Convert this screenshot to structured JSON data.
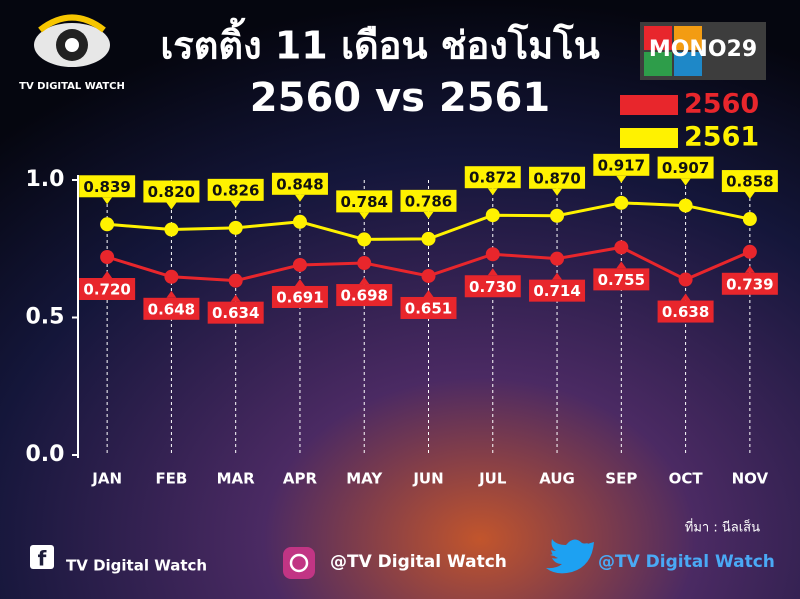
{
  "logo_left": "TV DIGITAL WATCH",
  "logo_right": "MONO29",
  "source": "ที่มา : นีลเส็น",
  "footer": {
    "facebook": "TV Digital  Watch",
    "instagram": "@TV Digital Watch",
    "twitter": "@TV Digital Watch"
  },
  "chart_data": {
    "type": "line",
    "title": "เรตติ้ง 11 เดือน ช่องโมโน",
    "subtitle": "2560 vs 2561",
    "categories": [
      "JAN",
      "FEB",
      "MAR",
      "APR",
      "MAY",
      "JUN",
      "JUL",
      "AUG",
      "SEP",
      "OCT",
      "NOV"
    ],
    "series": [
      {
        "name": "2560",
        "color": "#e8262c",
        "values": [
          0.72,
          0.648,
          0.634,
          0.691,
          0.698,
          0.651,
          0.73,
          0.714,
          0.755,
          0.638,
          0.739
        ],
        "value_labels": [
          "0.720",
          "0.648",
          "0.634",
          "0.691",
          "0.698",
          "0.651",
          "0.730",
          "0.714",
          "0.755",
          "0.638",
          "0.739"
        ]
      },
      {
        "name": "2561",
        "color": "#fff200",
        "values": [
          0.839,
          0.82,
          0.826,
          0.848,
          0.784,
          0.786,
          0.872,
          0.87,
          0.917,
          0.907,
          0.858
        ],
        "value_labels": [
          "0.839",
          "0.820",
          "0.826",
          "0.848",
          "0.784",
          "0.786",
          "0.872",
          "0.870",
          "0.917",
          "0.907",
          "0.858"
        ]
      }
    ],
    "ylim": [
      0,
      1
    ],
    "yticks": [
      {
        "value": 0,
        "label": "0.0"
      },
      0.5,
      {
        "value": 1,
        "label": "1.0"
      }
    ],
    "legend": "top-right"
  }
}
